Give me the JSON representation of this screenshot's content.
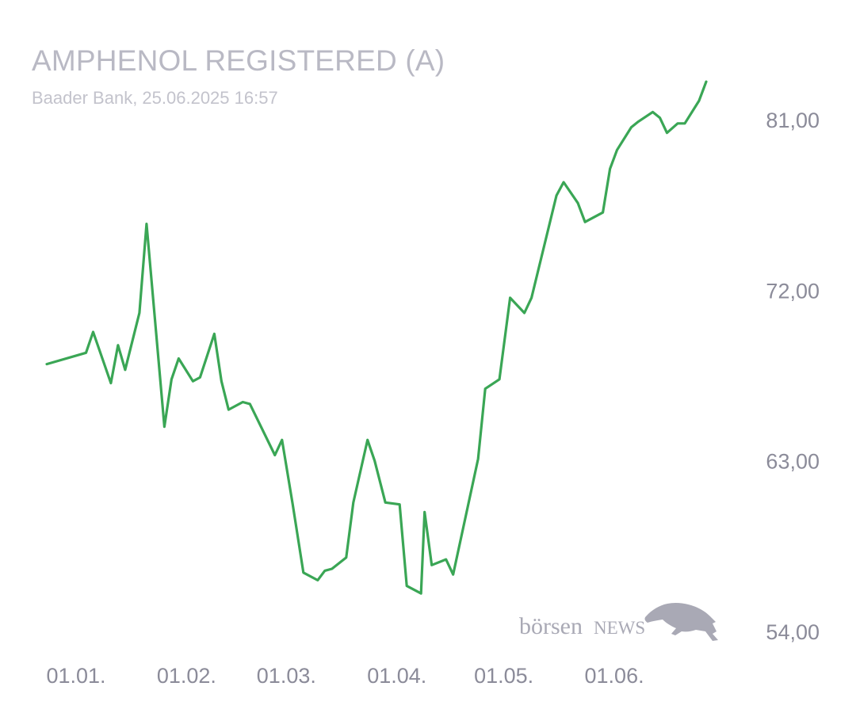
{
  "header": {
    "title": "AMPHENOL REGISTERED (A)",
    "subtitle": "Baader Bank, 25.06.2025 16:57"
  },
  "logo": {
    "text_lower": "börsen",
    "text_upper": "NEWS",
    "icon": "bull-icon"
  },
  "colors": {
    "line": "#3aa655",
    "axis_text": "#8b8b99",
    "title": "#b9b9c4",
    "logo": "#a9a9b5"
  },
  "chart_data": {
    "type": "line",
    "title": "AMPHENOL REGISTERED (A)",
    "subtitle": "Baader Bank, 25.06.2025 16:57",
    "xlim": [
      "2024-12-30",
      "2025-06-25"
    ],
    "ylim": [
      54,
      81
    ],
    "yticks": [
      {
        "value": 81,
        "label": "81,00"
      },
      {
        "value": 72,
        "label": "72,00"
      },
      {
        "value": 63,
        "label": "63,00"
      },
      {
        "value": 54,
        "label": "54,00"
      }
    ],
    "xticks": [
      {
        "date": "2025-01-01",
        "label": "01.01."
      },
      {
        "date": "2025-02-01",
        "label": "01.02."
      },
      {
        "date": "2025-03-01",
        "label": "01.03."
      },
      {
        "date": "2025-04-01",
        "label": "01.04."
      },
      {
        "date": "2025-05-01",
        "label": "01.05."
      },
      {
        "date": "2025-06-01",
        "label": "01.06."
      }
    ],
    "grid": false,
    "series": [
      {
        "values": [
          [
            "2024-12-30",
            68.1
          ],
          [
            "2025-01-10",
            68.7
          ],
          [
            "2025-01-12",
            69.8
          ],
          [
            "2025-01-17",
            67.1
          ],
          [
            "2025-01-19",
            69.1
          ],
          [
            "2025-01-21",
            67.8
          ],
          [
            "2025-01-25",
            70.8
          ],
          [
            "2025-01-27",
            75.5
          ],
          [
            "2025-02-01",
            64.8
          ],
          [
            "2025-02-03",
            67.3
          ],
          [
            "2025-02-05",
            68.4
          ],
          [
            "2025-02-09",
            67.2
          ],
          [
            "2025-02-11",
            67.4
          ],
          [
            "2025-02-15",
            69.7
          ],
          [
            "2025-02-17",
            67.2
          ],
          [
            "2025-02-19",
            65.7
          ],
          [
            "2025-02-23",
            66.1
          ],
          [
            "2025-02-25",
            66.0
          ],
          [
            "2025-03-04",
            63.3
          ],
          [
            "2025-03-06",
            64.1
          ],
          [
            "2025-03-09",
            60.7
          ],
          [
            "2025-03-12",
            57.1
          ],
          [
            "2025-03-16",
            56.7
          ],
          [
            "2025-03-18",
            57.2
          ],
          [
            "2025-03-20",
            57.3
          ],
          [
            "2025-03-24",
            57.9
          ],
          [
            "2025-03-26",
            60.8
          ],
          [
            "2025-03-30",
            64.1
          ],
          [
            "2025-04-01",
            63.0
          ],
          [
            "2025-04-04",
            60.8
          ],
          [
            "2025-04-08",
            60.7
          ],
          [
            "2025-04-10",
            56.4
          ],
          [
            "2025-04-14",
            56.0
          ],
          [
            "2025-04-15",
            60.3
          ],
          [
            "2025-04-17",
            57.5
          ],
          [
            "2025-04-21",
            57.8
          ],
          [
            "2025-04-23",
            57.0
          ],
          [
            "2025-04-30",
            63.1
          ],
          [
            "2025-05-02",
            66.8
          ],
          [
            "2025-05-06",
            67.3
          ],
          [
            "2025-05-09",
            71.6
          ],
          [
            "2025-05-13",
            70.8
          ],
          [
            "2025-05-15",
            71.6
          ],
          [
            "2025-05-22",
            77.0
          ],
          [
            "2025-05-24",
            77.7
          ],
          [
            "2025-05-28",
            76.6
          ],
          [
            "2025-05-30",
            75.6
          ],
          [
            "2025-06-04",
            76.1
          ],
          [
            "2025-06-06",
            78.4
          ],
          [
            "2025-06-08",
            79.4
          ],
          [
            "2025-06-12",
            80.6
          ],
          [
            "2025-06-14",
            80.9
          ],
          [
            "2025-06-18",
            81.4
          ],
          [
            "2025-06-20",
            81.1
          ],
          [
            "2025-06-22",
            80.3
          ],
          [
            "2025-06-25",
            80.8
          ],
          [
            "2025-06-27",
            80.8
          ],
          [
            "2025-07-01",
            82.0
          ],
          [
            "2025-07-03",
            83.0
          ]
        ]
      }
    ]
  }
}
